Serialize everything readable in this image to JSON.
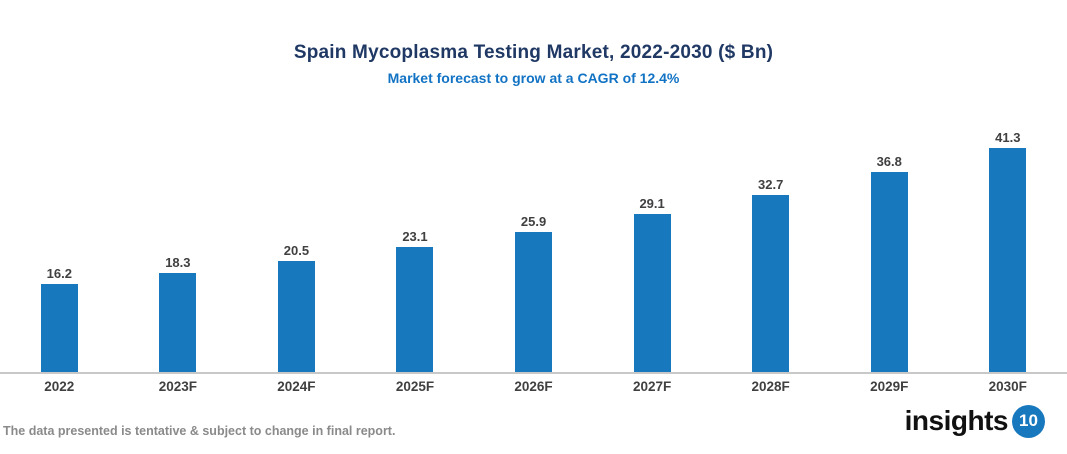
{
  "header": {
    "title": "Spain Mycoplasma Testing Market, 2022-2030 ($ Bn)",
    "subtitle": "Market forecast to grow at a CAGR of 12.4%"
  },
  "chart_data": {
    "type": "bar",
    "categories": [
      "2022",
      "2023F",
      "2024F",
      "2025F",
      "2026F",
      "2027F",
      "2028F",
      "2029F",
      "2030F"
    ],
    "values": [
      16.2,
      18.3,
      20.5,
      23.1,
      25.9,
      29.1,
      32.7,
      36.8,
      41.3
    ],
    "title": "Spain Mycoplasma Testing Market, 2022-2030 ($ Bn)",
    "subtitle": "Market forecast to grow at a CAGR of 12.4%",
    "xlabel": "",
    "ylabel": "",
    "ylim": [
      0,
      45
    ],
    "grid": false,
    "legend": false,
    "data_labels": true,
    "data_label_decimals": 1
  },
  "footer": {
    "note": "The data presented is tentative & subject to change in final report.",
    "logo_text": "insights",
    "logo_badge": "10"
  },
  "colors": {
    "title": "#1F3864",
    "subtitle": "#1273C4",
    "bar": "#1878BE",
    "value_label": "#404040",
    "category_label": "#404040",
    "axis_line": "#C8C8C8",
    "note": "#8A8A8A",
    "logo_text": "#111111",
    "logo_badge_bg": "#1878BE",
    "logo_badge_text": "#FFFFFF"
  }
}
